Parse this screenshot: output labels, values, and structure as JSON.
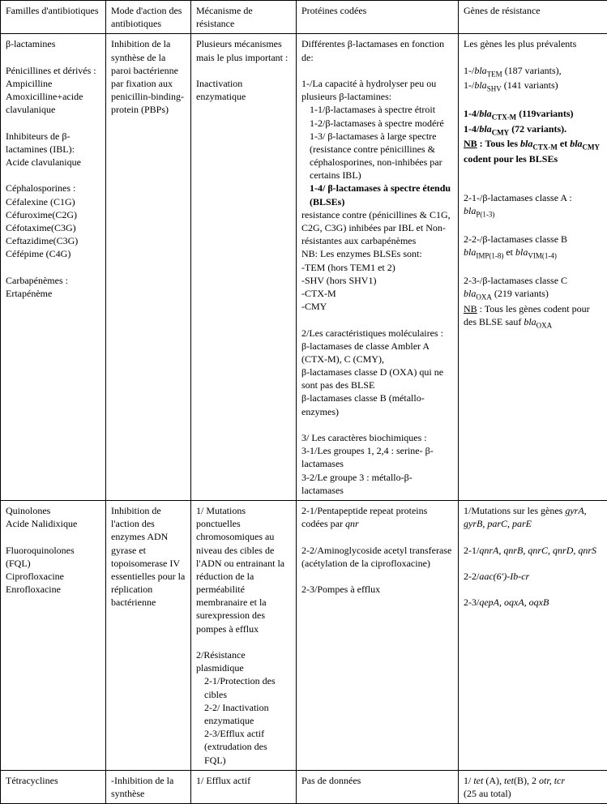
{
  "table": {
    "header": {
      "c1": "Familles d'antibiotiques",
      "c2": "Mode d'action des antibiotiques",
      "c3": "Mécanisme de résistance",
      "c4": "Protéines codées",
      "c5": "Gènes de résistance"
    },
    "r1": {
      "c1_t1": "β-lactamines",
      "c1_t2": "Pénicillines et dérivés :",
      "c1_t3": "Ampicilline",
      "c1_t4": "Amoxicilline+acide clavulanique",
      "c1_t5": "Inhibiteurs de β-lactamines (IBL):",
      "c1_t6": "Acide clavulanique",
      "c1_t7": "Céphalosporines :",
      "c1_t8": "Céfalexine (C1G)",
      "c1_t9": "Céfuroxime(C2G)",
      "c1_t10": "Céfotaxime(C3G)",
      "c1_t11": "Ceftazidime(C3G)",
      "c1_t12": "Céfépime (C4G)",
      "c1_t13": "Carbapénèmes :",
      "c1_t14": "Ertapénème",
      "c2_t1": "Inhibition de la synthèse de la paroi bactérienne par fixation aux penicillin-binding-protein (PBPs)",
      "c3_t1": "Plusieurs mécanismes mais le plus important :",
      "c3_t2": "Inactivation enzymatique",
      "c4_t1": "Différentes β-lactamases en fonction de:",
      "c4_t2": "1-/La capacité à hydrolyser peu ou plusieurs β-lactamines:",
      "c4_t3": "1-1/β-lactamases à spectre étroit",
      "c4_t4": "1-2/β-lactamases à spectre modéré",
      "c4_t5": "1-3/ β-lactamases à large spectre (resistance contre pénicillines & céphalosporines, non-inhibées par certains IBL)",
      "c4_t6": "1-4/ β-lactamases à spectre étendu (BLSEs)",
      "c4_t7": "resistance contre (pénicillines & C1G, C2G, C3G) inhibées par IBL et Non-résistantes aux carbapénèmes",
      "c4_t8": "NB: Les enzymes BLSEs sont:",
      "c4_t9": "-TEM (hors TEM1 et 2)",
      "c4_t10": "-SHV (hors SHV1)",
      "c4_t11": "-CTX-M",
      "c4_t12": "-CMY",
      "c4_t13": "2/Les  caractéristiques moléculaires :",
      "c4_t14": "β-lactamases de classe Ambler A (CTX-M), C (CMY),",
      "c4_t15": "β-lactamases classe D (OXA) qui ne sont pas des BLSE",
      "c4_t16": "β-lactamases classe B (métallo-enzymes)",
      "c4_t17": "3/ Les caractères biochimiques :",
      "c4_t18": "3-1/Les groupes 1, 2,4 : serine- β-lactamases",
      "c4_t19": "3-2/Le groupe 3 : métallo-β-lactamases",
      "c5_t1": "Les gènes les plus prévalents",
      "c5_t2a": "1-/",
      "c5_t2b": "bla",
      "c5_t2s": "TEM",
      "c5_t2c": " (187 variants),",
      "c5_t3a": "1-/",
      "c5_t3b": "bla",
      "c5_t3s": "SHV",
      "c5_t3c": " (141 variants)",
      "c5_t4a": "1-4/",
      "c5_t4b": "bla",
      "c5_t4s": "CTX-M",
      "c5_t4c": " (119variants)",
      "c5_t5a": "1-4/",
      "c5_t5b": "bla",
      "c5_t5s": "CMY",
      "c5_t5c": " (72 variants).",
      "c5_t6a": "NB",
      "c5_t6b": " : Tous les ",
      "c5_t6c": "bla",
      "c5_t6s1": "CTX-M",
      "c5_t6d": " et ",
      "c5_t6e": "bla",
      "c5_t6s2": "CMY",
      "c5_t6f": " codent pour les BLSEs",
      "c5_t7": "2-1-/β-lactamases classe A :",
      "c5_t7b": "bla",
      "c5_t7s": "P(1-3)",
      "c5_t8": "2-2-/β-lactamases classe B",
      "c5_t8b": "bla",
      "c5_t8s1": "IMP(1-8)",
      "c5_t8c": " et ",
      "c5_t8d": "bla",
      "c5_t8s2": "VIM(1-4)",
      "c5_t9": "2-3-/β-lactamases classe C",
      "c5_t9b": "bla",
      "c5_t9s": "OXA",
      "c5_t9c": " (219 variants)",
      "c5_t10a": "NB",
      "c5_t10b": " : Tous les gènes codent pour des BLSE sauf ",
      "c5_t10c": "bla",
      "c5_t10s": "OXA"
    },
    "r2": {
      "c1_t1": "Quinolones",
      "c1_t2": "Acide Nalidixique",
      "c1_t3": "Fluoroquinolones (FQL)",
      "c1_t4": "Ciprofloxacine",
      "c1_t5": "Enrofloxacine",
      "c2_t1": "Inhibition de l'action des enzymes  ADN gyrase et topoisomerase IV essentielles pour la réplication bactérienne",
      "c3_t1": "1/ Mutations ponctuelles chromosomiques au niveau des cibles de l'ADN ou entrainant la réduction de la perméabilité membranaire et la surexpression des pompes à efflux",
      "c3_t2": "2/Résistance plasmidique",
      "c3_t3": "2-1/Protection des cibles",
      "c3_t4": "2-2/ Inactivation enzymatique",
      "c3_t5": "2-3/Efflux actif (extrudation des FQL)",
      "c4_t1": "2-1/Pentapeptide repeat proteins codées par ",
      "c4_t1i": "qnr",
      "c4_t2": "2-2/Aminoglycoside acetyl transferase (acétylation de la ciprofloxacine)",
      "c4_t3": "2-3/Pompes à efflux",
      "c5_t1": "1/Mutations sur les gènes ",
      "c5_t1i": "gyrA, gyrB, parC, parE",
      "c5_t2": "2-1/",
      "c5_t2i": "qnrA, qnrB, qnrC, qnrD, qnrS",
      "c5_t3": "2-2/",
      "c5_t3i": "aac(6')-Ib-cr",
      "c5_t4": "2-3/",
      "c5_t4i": "qepA, oqxA, oqxB"
    },
    "r3": {
      "c1_t1": "Tétracyclines",
      "c2_t1": "-Inhibition de la synthèse",
      "c3_t1": "1/ Efflux  actif",
      "c4_t1": "Pas de données",
      "c5_t1a": "1/ ",
      "c5_t1b": "tet",
      "c5_t1c": " (A), ",
      "c5_t1d": "tet",
      "c5_t1e": "(B), 2 ",
      "c5_t1f": "otr, tcr",
      "c5_t2": "(25 au total)"
    }
  }
}
